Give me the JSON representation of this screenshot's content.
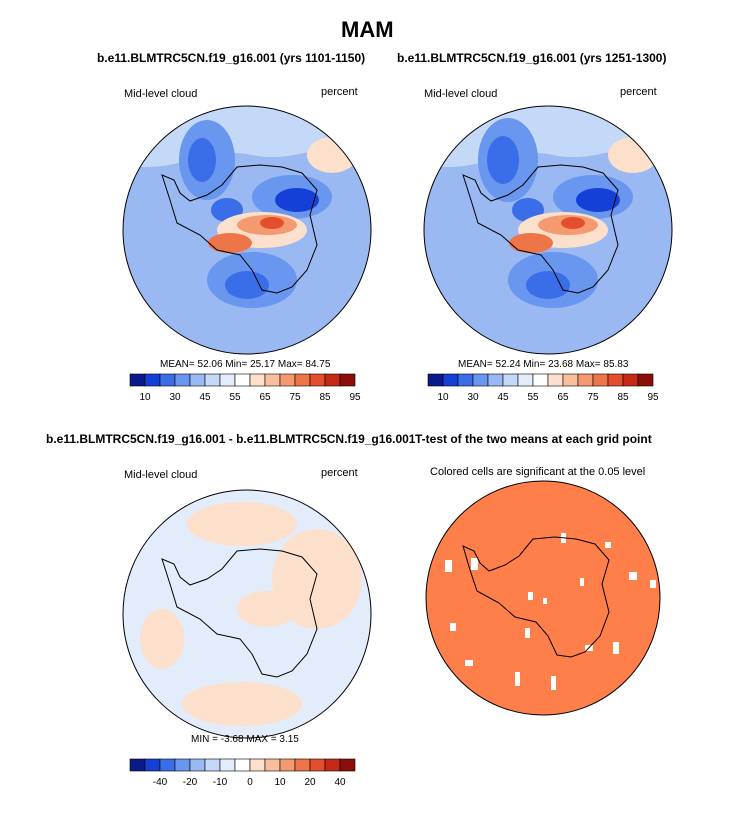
{
  "title": "MAM",
  "chart_data": [
    {
      "type": "heatmap",
      "projection": "south polar stereographic",
      "title": "b.e11.BLMTRC5CN.f19_g16.001 (yrs 1101-1150)",
      "left_label": "Mid-level cloud",
      "right_label": "percent",
      "stats": {
        "mean_label": "MEAN=",
        "mean": "52.06",
        "min_label": "Min=",
        "min": "25.17",
        "max_label": "Max=",
        "max": "84.75"
      },
      "colorbar": {
        "ticks": [
          "10",
          "30",
          "45",
          "55",
          "65",
          "75",
          "85",
          "95"
        ],
        "colors": [
          "#0a1a8a",
          "#1440d8",
          "#3a6ee8",
          "#6996ee",
          "#9ab8f2",
          "#c4d8f8",
          "#e2ecfb",
          "#ffffff",
          "#fde0cc",
          "#f9bf9c",
          "#f59a70",
          "#ee7548",
          "#e34f2c",
          "#c52a17",
          "#8c0e08"
        ]
      }
    },
    {
      "type": "heatmap",
      "projection": "south polar stereographic",
      "title": "b.e11.BLMTRC5CN.f19_g16.001 (yrs 1251-1300)",
      "left_label": "Mid-level cloud",
      "right_label": "percent",
      "stats": {
        "mean_label": "MEAN=",
        "mean": "52.24",
        "min_label": "Min=",
        "min": "23.68",
        "max_label": "Max=",
        "max": "85.83"
      },
      "colorbar": {
        "ticks": [
          "10",
          "30",
          "45",
          "55",
          "65",
          "75",
          "85",
          "95"
        ],
        "colors": [
          "#0a1a8a",
          "#1440d8",
          "#3a6ee8",
          "#6996ee",
          "#9ab8f2",
          "#c4d8f8",
          "#e2ecfb",
          "#ffffff",
          "#fde0cc",
          "#f9bf9c",
          "#f59a70",
          "#ee7548",
          "#e34f2c",
          "#c52a17",
          "#8c0e08"
        ]
      }
    },
    {
      "type": "heatmap",
      "projection": "south polar stereographic",
      "title": "b.e11.BLMTRC5CN.f19_g16.001 - b.e11.BLMTRC5CN.f19_g16.001",
      "left_label": "Mid-level cloud",
      "right_label": "percent",
      "stats": {
        "min_label": "MIN =",
        "min": "-3.68",
        "max_label": "MAX =",
        "max": "3.15"
      },
      "colorbar": {
        "ticks": [
          "-40",
          "-20",
          "-10",
          "0",
          "10",
          "20",
          "40"
        ],
        "colors": [
          "#0a1a8a",
          "#1440d8",
          "#3a6ee8",
          "#6996ee",
          "#9ab8f2",
          "#c4d8f8",
          "#e2ecfb",
          "#ffffff",
          "#fde0cc",
          "#f9bf9c",
          "#f59a70",
          "#ee7548",
          "#e34f2c",
          "#c52a17",
          "#8c0e08"
        ]
      }
    },
    {
      "type": "heatmap",
      "projection": "south polar stereographic",
      "title": "T-test of the two means at each grid point",
      "left_label": "Colored cells are significant at the 0.05 level",
      "significant_fill": "#ff7f4a"
    }
  ]
}
